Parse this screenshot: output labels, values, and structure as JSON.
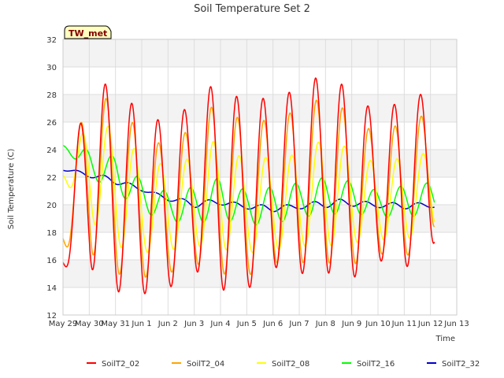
{
  "chart_data": {
    "type": "line",
    "title": "Soil Temperature Set 2",
    "xlabel": "Time",
    "ylabel": "Soil Temperature (C)",
    "ylim": [
      12,
      32
    ],
    "yticks": [
      12,
      14,
      16,
      18,
      20,
      22,
      24,
      26,
      28,
      30,
      32
    ],
    "xlim": [
      "2023-05-29",
      "2023-06-13"
    ],
    "xtick_labels": [
      "May 29",
      "May 30",
      "May 31",
      "Jun 1",
      "Jun 2",
      "Jun 3",
      "Jun 4",
      "Jun 5",
      "Jun 6",
      "Jun 7",
      "Jun 8",
      "Jun 9",
      "Jun 10",
      "Jun 11",
      "Jun 12",
      "Jun 13"
    ],
    "grid": true,
    "legend_placement": "bottom",
    "annotation": "TW_met",
    "colors": {
      "SoilT2_02": "#ff0000",
      "SoilT2_04": "#ffa500",
      "SoilT2_08": "#ffff00",
      "SoilT2_16": "#00ff00",
      "SoilT2_32": "#0000cc"
    },
    "daily_extremes": {
      "description": "Approximate daily minimum and maximum readings (C) for each day May 29 to Jun 12",
      "days": [
        "May 29",
        "May 30",
        "May 31",
        "Jun 1",
        "Jun 2",
        "Jun 3",
        "Jun 4",
        "Jun 5",
        "Jun 6",
        "Jun 7",
        "Jun 8",
        "Jun 9",
        "Jun 10",
        "Jun 11",
        "Jun 12"
      ],
      "series": [
        {
          "name": "SoilT2_02",
          "min": [
            15.5,
            15.5,
            13.7,
            13.5,
            13.9,
            15.3,
            13.8,
            13.8,
            15.5,
            15.0,
            15.1,
            14.6,
            16.0,
            15.3,
            17.2
          ],
          "max": [
            17.8,
            30.3,
            27.8,
            27.1,
            25.6,
            27.7,
            29.1,
            27.1,
            28.1,
            28.2,
            29.8,
            28.1,
            26.6,
            27.7,
            28.2
          ]
        },
        {
          "name": "SoilT2_04",
          "min": [
            17.0,
            16.6,
            15.0,
            14.7,
            15.0,
            15.8,
            15.0,
            14.8,
            15.8,
            15.8,
            15.8,
            15.6,
            16.5,
            16.0,
            18.4
          ],
          "max": [
            19.7,
            29.0,
            27.0,
            25.4,
            24.0,
            25.9,
            27.7,
            25.6,
            26.4,
            26.8,
            28.0,
            26.5,
            25.0,
            26.1,
            26.6
          ]
        },
        {
          "name": "SoilT2_08",
          "min": [
            22.0,
            19.0,
            17.0,
            16.5,
            16.7,
            17.0,
            16.8,
            16.5,
            16.7,
            17.0,
            17.0,
            17.2,
            17.5,
            17.3,
            18.5
          ],
          "max": [
            22.3,
            26.2,
            25.5,
            23.5,
            22.8,
            23.5,
            25.0,
            23.0,
            23.6,
            23.6,
            24.9,
            24.0,
            22.9,
            23.5,
            23.8
          ]
        },
        {
          "name": "SoilT2_16",
          "min": [
            24.3,
            22.0,
            21.0,
            19.5,
            18.8,
            18.6,
            19.0,
            18.5,
            18.6,
            19.1,
            19.3,
            19.4,
            19.1,
            19.1,
            19.3
          ],
          "max": [
            24.3,
            24.0,
            23.5,
            21.8,
            20.9,
            21.3,
            22.0,
            21.0,
            21.3,
            21.6,
            22.0,
            21.7,
            21.0,
            21.4,
            21.6
          ]
        },
        {
          "name": "SoilT2_32",
          "min": [
            22.5,
            22.0,
            21.5,
            21.0,
            20.3,
            19.8,
            20.0,
            19.7,
            19.5,
            19.7,
            19.8,
            19.9,
            19.8,
            19.7,
            19.8
          ],
          "max": [
            22.7,
            22.3,
            22.0,
            21.2,
            20.6,
            20.3,
            20.4,
            20.0,
            20.0,
            20.0,
            20.4,
            20.4,
            20.1,
            20.2,
            20.1
          ]
        }
      ]
    }
  },
  "legend": {
    "items": [
      {
        "label": "SoilT2_02"
      },
      {
        "label": "SoilT2_04"
      },
      {
        "label": "SoilT2_08"
      },
      {
        "label": "SoilT2_16"
      },
      {
        "label": "SoilT2_32"
      }
    ]
  }
}
